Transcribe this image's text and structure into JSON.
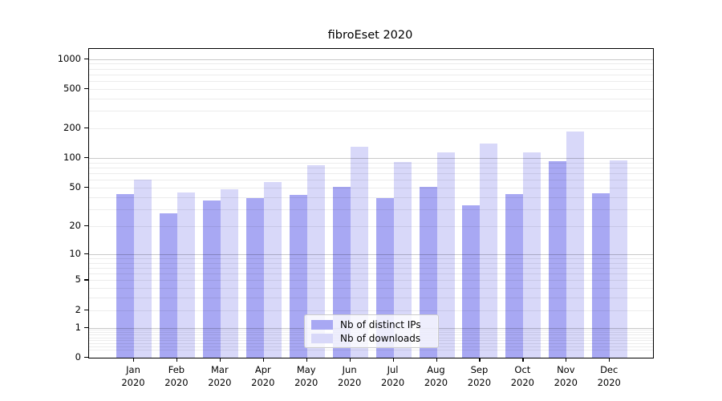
{
  "chart_data": {
    "type": "bar",
    "title": "fibroEset 2020",
    "x_tick_labels": [
      [
        "Jan",
        "2020"
      ],
      [
        "Feb",
        "2020"
      ],
      [
        "Mar",
        "2020"
      ],
      [
        "Apr",
        "2020"
      ],
      [
        "May",
        "2020"
      ],
      [
        "Jun",
        "2020"
      ],
      [
        "Jul",
        "2020"
      ],
      [
        "Aug",
        "2020"
      ],
      [
        "Sep",
        "2020"
      ],
      [
        "Oct",
        "2020"
      ],
      [
        "Nov",
        "2020"
      ],
      [
        "Dec",
        "2020"
      ]
    ],
    "series": [
      {
        "name": "Nb of distinct IPs",
        "color": "#a8a8f3",
        "values": [
          43,
          27,
          37,
          39,
          42,
          51,
          39,
          51,
          33,
          43,
          93,
          44
        ]
      },
      {
        "name": "Nb of downloads",
        "color": "#d8d8f9",
        "values": [
          61,
          45,
          48,
          57,
          85,
          130,
          91,
          115,
          140,
          114,
          185,
          95
        ]
      }
    ],
    "y_axis": {
      "scale": "log10(1+v)",
      "tick_labels": [
        "1000",
        "500",
        "200",
        "100",
        "50",
        "20",
        "10",
        "5",
        "2",
        "1",
        "0"
      ],
      "tick_values": [
        1000,
        500,
        200,
        100,
        50,
        20,
        10,
        5,
        2,
        1,
        0
      ],
      "ylim": [
        0,
        1264
      ]
    },
    "grid": {
      "orientation": "horizontal",
      "major_values": [
        1,
        10,
        100,
        1000
      ],
      "minor_decades": [
        0.1,
        1,
        10,
        100
      ]
    },
    "legend": {
      "position": "lower center",
      "items": [
        "Nb of distinct IPs",
        "Nb of downloads"
      ]
    }
  }
}
